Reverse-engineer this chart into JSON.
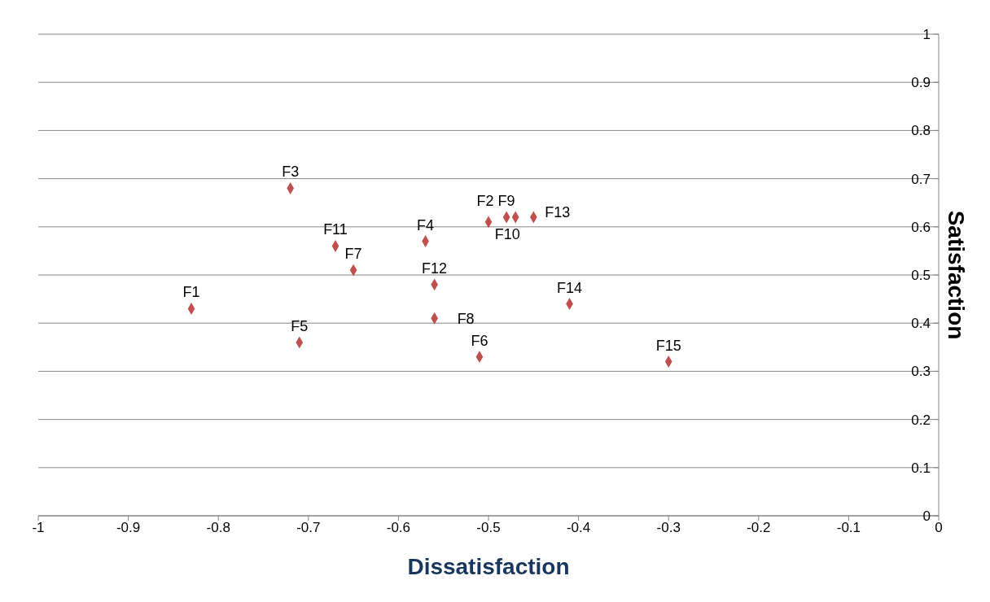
{
  "chart_data": {
    "type": "scatter",
    "xlabel": "Dissatisfaction",
    "ylabel": "Satisfaction",
    "x": [
      -0.83,
      -0.5,
      -0.72,
      -0.57,
      -0.71,
      -0.51,
      -0.65,
      -0.56,
      -0.48,
      -0.47,
      -0.67,
      -0.56,
      -0.45,
      -0.41,
      -0.3
    ],
    "series": [
      {
        "color": "#c0504d",
        "values": [
          0.43,
          0.61,
          0.68,
          0.57,
          0.36,
          0.33,
          0.51,
          0.41,
          0.62,
          0.62,
          0.56,
          0.48,
          0.62,
          0.44,
          0.32
        ]
      }
    ],
    "annotations": [
      {
        "text": "F1",
        "x": -0.83,
        "y": 0.43
      },
      {
        "text": "F2",
        "x": -0.5,
        "y": 0.61
      },
      {
        "text": "F3",
        "x": -0.72,
        "y": 0.68
      },
      {
        "text": "F4",
        "x": -0.57,
        "y": 0.57
      },
      {
        "text": "F5",
        "x": -0.71,
        "y": 0.36
      },
      {
        "text": "F6",
        "x": -0.51,
        "y": 0.33
      },
      {
        "text": "F7",
        "x": -0.65,
        "y": 0.51
      },
      {
        "text": "F8",
        "x": -0.56,
        "y": 0.41
      },
      {
        "text": "F9",
        "x": -0.48,
        "y": 0.62
      },
      {
        "text": "F10",
        "x": -0.47,
        "y": 0.62
      },
      {
        "text": "F11",
        "x": -0.67,
        "y": 0.56
      },
      {
        "text": "F12",
        "x": -0.56,
        "y": 0.48
      },
      {
        "text": "F13",
        "x": -0.45,
        "y": 0.62
      },
      {
        "text": "F14",
        "x": -0.41,
        "y": 0.44
      },
      {
        "text": "F15",
        "x": -0.3,
        "y": 0.32
      }
    ],
    "xlim": [
      -1,
      0
    ],
    "xticks": [
      -1,
      -0.9,
      -0.8,
      -0.7,
      -0.6,
      -0.5,
      -0.4,
      -0.3,
      -0.2,
      -0.1,
      0
    ],
    "ylim": [
      0,
      1
    ],
    "yticks": [
      0,
      0.1,
      0.2,
      0.3,
      0.4,
      0.5,
      0.6,
      0.7,
      0.8,
      0.9,
      1
    ],
    "grid": "y",
    "marker": "diamond",
    "legend": false
  }
}
